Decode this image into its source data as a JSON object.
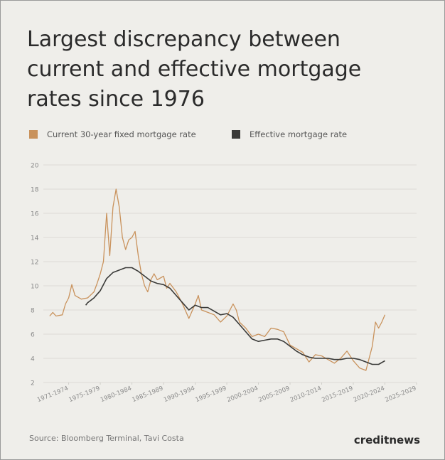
{
  "chart_data": {
    "type": "line",
    "title": "Largest discrepancy between current and effective mortgage rates since 1976",
    "source": "Source: Bloomberg Terminal, Tavi Costa",
    "brand": "creditnews",
    "grid": true,
    "legend": "top-left",
    "xlim": [
      1970,
      2029
    ],
    "ylim": [
      2,
      20
    ],
    "yticks": [
      2,
      4,
      6,
      8,
      10,
      12,
      14,
      16,
      18,
      20
    ],
    "xticks": [
      {
        "value": 1974,
        "label": "1971-1974"
      },
      {
        "value": 1979,
        "label": "1975-1979"
      },
      {
        "value": 1984,
        "label": "1980-1984"
      },
      {
        "value": 1989,
        "label": "1985-1989"
      },
      {
        "value": 1994,
        "label": "1990-1994"
      },
      {
        "value": 1999,
        "label": "1995-1999"
      },
      {
        "value": 2004,
        "label": "2000-2004"
      },
      {
        "value": 2009,
        "label": "2005-2009"
      },
      {
        "value": 2014,
        "label": "2010-2014"
      },
      {
        "value": 2019,
        "label": "2015-2019"
      },
      {
        "value": 2024,
        "label": "2020-2024"
      },
      {
        "value": 2029,
        "label": "2025-2029"
      }
    ],
    "series": [
      {
        "name": "Current 30-year fixed mortgage rate",
        "color": "#c9925c",
        "x": [
          1971,
          1971.5,
          1972,
          1973,
          1973.5,
          1974,
          1974.5,
          1975,
          1976,
          1977,
          1978,
          1978.5,
          1979,
          1979.5,
          1980,
          1980.5,
          1981,
          1981.5,
          1982,
          1982.5,
          1983,
          1983.5,
          1984,
          1984.5,
          1985,
          1985.5,
          1986,
          1986.5,
          1987,
          1987.5,
          1988,
          1989,
          1989.5,
          1990,
          1991,
          1992,
          1993,
          1994,
          1994.5,
          1995,
          1996,
          1997,
          1998,
          1999,
          2000,
          2000.5,
          2001,
          2002,
          2003,
          2004,
          2005,
          2006,
          2007,
          2008,
          2009,
          2010,
          2011,
          2012,
          2013,
          2014,
          2015,
          2016,
          2017,
          2018,
          2019,
          2020,
          2021,
          2022,
          2022.5,
          2023,
          2023.5,
          2024
        ],
        "values": [
          7.5,
          7.8,
          7.5,
          7.6,
          8.5,
          9.0,
          10.1,
          9.2,
          8.9,
          9.0,
          9.5,
          10.2,
          11.0,
          12.0,
          16.0,
          12.5,
          16.5,
          18.0,
          16.5,
          14.0,
          13.0,
          13.8,
          14.0,
          14.5,
          12.5,
          11.0,
          10.0,
          9.5,
          10.5,
          11.0,
          10.5,
          10.8,
          9.8,
          10.2,
          9.5,
          8.5,
          7.3,
          8.5,
          9.2,
          8.0,
          7.8,
          7.6,
          7.0,
          7.5,
          8.5,
          8.0,
          7.0,
          6.5,
          5.8,
          6.0,
          5.8,
          6.5,
          6.4,
          6.2,
          5.1,
          4.8,
          4.5,
          3.7,
          4.3,
          4.2,
          3.9,
          3.6,
          4.0,
          4.6,
          3.8,
          3.2,
          3.0,
          5.0,
          7.0,
          6.5,
          7.0,
          7.6
        ]
      },
      {
        "name": "Effective mortgage rate",
        "color": "#3a3a38",
        "x": [
          1976.7,
          1977,
          1978,
          1979,
          1980,
          1981,
          1982,
          1983,
          1984,
          1985,
          1986,
          1987,
          1988,
          1989,
          1990,
          1991,
          1992,
          1993,
          1994,
          1995,
          1996,
          1997,
          1998,
          1999,
          2000,
          2001,
          2002,
          2003,
          2004,
          2005,
          2006,
          2007,
          2008,
          2009,
          2010,
          2011,
          2012,
          2013,
          2014,
          2015,
          2016,
          2017,
          2018,
          2019,
          2020,
          2021,
          2022,
          2023,
          2024
        ],
        "values": [
          8.4,
          8.6,
          9.0,
          9.6,
          10.6,
          11.1,
          11.3,
          11.5,
          11.5,
          11.2,
          10.8,
          10.4,
          10.2,
          10.1,
          9.8,
          9.2,
          8.6,
          8.0,
          8.4,
          8.2,
          8.2,
          7.9,
          7.6,
          7.7,
          7.4,
          6.8,
          6.2,
          5.6,
          5.4,
          5.5,
          5.6,
          5.6,
          5.4,
          5.0,
          4.6,
          4.3,
          4.1,
          4.0,
          4.0,
          4.0,
          3.9,
          3.9,
          4.0,
          4.0,
          3.9,
          3.7,
          3.5,
          3.5,
          3.8
        ]
      }
    ]
  }
}
